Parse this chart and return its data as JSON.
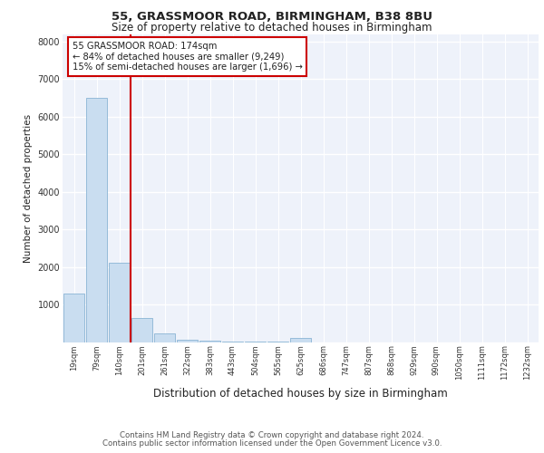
{
  "title1": "55, GRASSMOOR ROAD, BIRMINGHAM, B38 8BU",
  "title2": "Size of property relative to detached houses in Birmingham",
  "xlabel": "Distribution of detached houses by size in Birmingham",
  "ylabel": "Number of detached properties",
  "categories": [
    "19sqm",
    "79sqm",
    "140sqm",
    "201sqm",
    "261sqm",
    "322sqm",
    "383sqm",
    "443sqm",
    "504sqm",
    "565sqm",
    "625sqm",
    "686sqm",
    "747sqm",
    "807sqm",
    "868sqm",
    "929sqm",
    "990sqm",
    "1050sqm",
    "1111sqm",
    "1172sqm",
    "1232sqm"
  ],
  "values": [
    1300,
    6500,
    2100,
    650,
    240,
    70,
    40,
    15,
    10,
    5,
    100,
    0,
    0,
    0,
    0,
    0,
    0,
    0,
    0,
    0,
    0
  ],
  "bar_color": "#c9ddf0",
  "bar_edge_color": "#8ab4d4",
  "property_line_color": "#cc0000",
  "annotation_text": "55 GRASSMOOR ROAD: 174sqm\n← 84% of detached houses are smaller (9,249)\n15% of semi-detached houses are larger (1,696) →",
  "annotation_box_color": "#cc0000",
  "ylim": [
    0,
    8200
  ],
  "yticks": [
    0,
    1000,
    2000,
    3000,
    4000,
    5000,
    6000,
    7000,
    8000
  ],
  "background_color": "#eef2fa",
  "footer1": "Contains HM Land Registry data © Crown copyright and database right 2024.",
  "footer2": "Contains public sector information licensed under the Open Government Licence v3.0."
}
